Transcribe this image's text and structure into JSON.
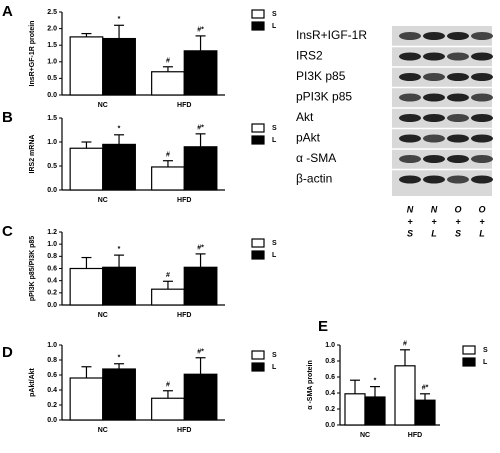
{
  "chart_data": [
    {
      "type": "bar",
      "panel": "A",
      "ylabel": "InsR+GF-1R protein",
      "categories": [
        "NC",
        "HFD"
      ],
      "series": [
        {
          "name": "S",
          "color": "#ffffff",
          "values": [
            1.75,
            0.7
          ],
          "errors": [
            0.1,
            0.15
          ],
          "markers": [
            null,
            "#"
          ]
        },
        {
          "name": "L",
          "color": "#000000",
          "values": [
            1.7,
            1.33
          ],
          "errors": [
            0.4,
            0.45
          ],
          "markers": [
            "*",
            "#*"
          ]
        }
      ],
      "ylim": [
        0,
        2.5
      ],
      "yticks": [
        {
          "value": 0,
          "label": "0.0"
        },
        0.5,
        {
          "value": 1,
          "label": "1.0"
        },
        1.5,
        {
          "value": 2,
          "label": "2.0"
        },
        2.5
      ]
    },
    {
      "type": "bar",
      "panel": "B",
      "ylabel": "IRS2 mRNA",
      "categories": [
        "NC",
        "HFD"
      ],
      "series": [
        {
          "name": "S",
          "color": "#ffffff",
          "values": [
            0.87,
            0.48
          ],
          "errors": [
            0.13,
            0.13
          ],
          "markers": [
            null,
            "#"
          ]
        },
        {
          "name": "L",
          "color": "#000000",
          "values": [
            0.95,
            0.9
          ],
          "errors": [
            0.2,
            0.27
          ],
          "markers": [
            "*",
            "#*"
          ]
        }
      ],
      "ylim": [
        0,
        1.5
      ],
      "yticks": [
        {
          "value": 0,
          "label": "0.0"
        },
        0.5,
        {
          "value": 1,
          "label": "1.0"
        },
        1.5
      ]
    },
    {
      "type": "bar",
      "panel": "C",
      "ylabel": "pPI3K p85/PI3K p85",
      "categories": [
        "NC",
        "HFD"
      ],
      "series": [
        {
          "name": "S",
          "color": "#ffffff",
          "values": [
            0.6,
            0.26
          ],
          "errors": [
            0.18,
            0.13
          ],
          "markers": [
            null,
            "#"
          ]
        },
        {
          "name": "L",
          "color": "#000000",
          "values": [
            0.62,
            0.62
          ],
          "errors": [
            0.2,
            0.22
          ],
          "markers": [
            "*",
            "#*"
          ]
        }
      ],
      "ylim": [
        0,
        1.2
      ],
      "yticks": [
        {
          "value": 0,
          "label": "0.0"
        },
        0.2,
        0.4,
        0.6,
        0.8,
        {
          "value": 1,
          "label": "1.0"
        },
        1.2
      ]
    },
    {
      "type": "bar",
      "panel": "D",
      "ylabel": "pAkt/Akt",
      "categories": [
        "NC",
        "HFD"
      ],
      "series": [
        {
          "name": "S",
          "color": "#ffffff",
          "values": [
            0.56,
            0.29
          ],
          "errors": [
            0.15,
            0.1
          ],
          "markers": [
            null,
            "#"
          ]
        },
        {
          "name": "L",
          "color": "#000000",
          "values": [
            0.68,
            0.61
          ],
          "errors": [
            0.07,
            0.22
          ],
          "markers": [
            "*",
            "#*"
          ]
        }
      ],
      "ylim": [
        0,
        1.0
      ],
      "yticks": [
        {
          "value": 0,
          "label": "0.0"
        },
        0.2,
        0.4,
        0.6,
        0.8,
        {
          "value": 1,
          "label": "1.0"
        }
      ]
    },
    {
      "type": "bar",
      "panel": "E",
      "ylabel": "α -SMA protein",
      "categories": [
        "NC",
        "HFD"
      ],
      "series": [
        {
          "name": "S",
          "color": "#ffffff",
          "values": [
            0.39,
            0.74
          ],
          "errors": [
            0.17,
            0.2
          ],
          "markers": [
            null,
            "#"
          ]
        },
        {
          "name": "L",
          "color": "#000000",
          "values": [
            0.35,
            0.31
          ],
          "errors": [
            0.13,
            0.08
          ],
          "markers": [
            "*",
            "#*"
          ]
        }
      ],
      "ylim": [
        0,
        1.0
      ],
      "yticks": [
        {
          "value": 0,
          "label": "0.0"
        },
        0.2,
        0.4,
        0.6,
        0.8,
        {
          "value": 1,
          "label": "1.0"
        }
      ]
    }
  ],
  "blot": {
    "rows": [
      "InsR+IGF-1R",
      "IRS2",
      "PI3K p85",
      "pPI3K p85",
      "Akt",
      "pAkt",
      "α -SMA",
      "β-actin"
    ],
    "lanes": [
      [
        "N",
        "+",
        "S"
      ],
      [
        "N",
        "+",
        "L"
      ],
      [
        "O",
        "+",
        "S"
      ],
      [
        "O",
        "+",
        "L"
      ]
    ]
  }
}
